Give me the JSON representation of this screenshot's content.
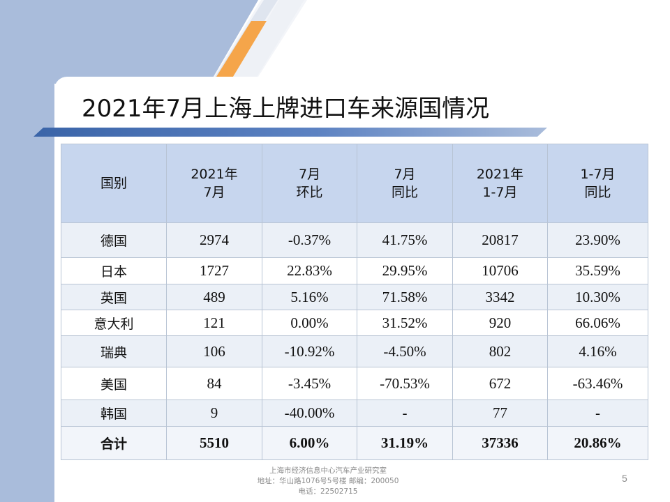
{
  "slide": {
    "title": "2021年7月上海上牌进口车来源国情况",
    "page_number": "5",
    "colors": {
      "panel_blue": "#a9bcdb",
      "accent_orange": "#f5a54a",
      "header_blue": "#c7d6ee",
      "stripe_blue": "#ebf0f7"
    }
  },
  "table": {
    "headers": [
      [
        "国别"
      ],
      [
        "2021年",
        "7月"
      ],
      [
        "7月",
        "环比"
      ],
      [
        "7月",
        "同比"
      ],
      [
        "2021年",
        "1-7月"
      ],
      [
        "1-7月",
        "同比"
      ]
    ],
    "rows": [
      [
        "德国",
        "2974",
        "-0.37%",
        "41.75%",
        "20817",
        "23.90%"
      ],
      [
        "日本",
        "1727",
        "22.83%",
        "29.95%",
        "10706",
        "35.59%"
      ],
      [
        "英国",
        "489",
        "5.16%",
        "71.58%",
        "3342",
        "10.30%"
      ],
      [
        "意大利",
        "121",
        "0.00%",
        "31.52%",
        "920",
        "66.06%"
      ],
      [
        "瑞典",
        "106",
        "-10.92%",
        "-4.50%",
        "802",
        "4.16%"
      ],
      [
        "美国",
        "84",
        "-3.45%",
        "-70.53%",
        "672",
        "-63.46%"
      ],
      [
        "韩国",
        "9",
        "-40.00%",
        "-",
        "77",
        "-"
      ]
    ],
    "total": [
      "合计",
      "5510",
      "6.00%",
      "31.19%",
      "37336",
      "20.86%"
    ]
  },
  "footer": {
    "line1": "上海市经济信息中心汽车产业研究室",
    "line2": "地址：华山路1076号5号楼   邮编：200050",
    "line3": "电话：22502715"
  }
}
